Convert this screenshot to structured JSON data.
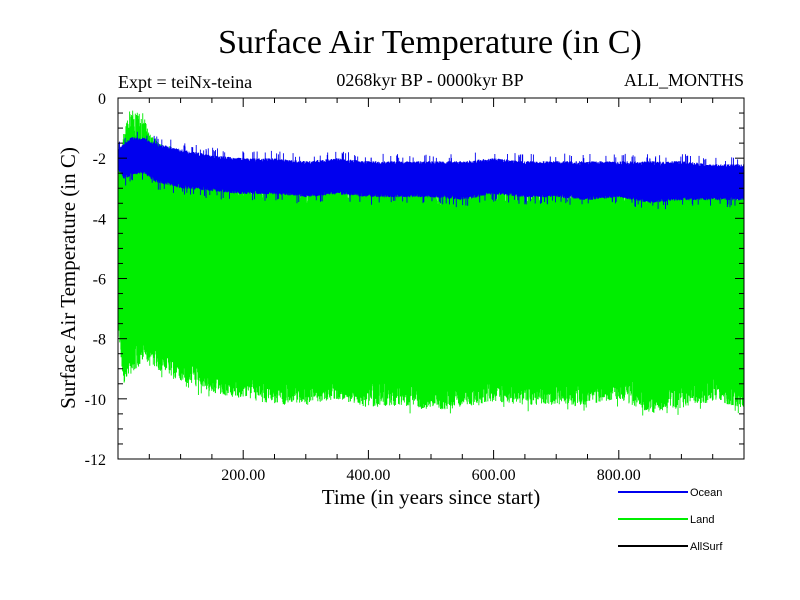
{
  "chart_data": {
    "type": "line",
    "title": "Surface Air Temperature (in C)",
    "subtitle": "0268kyr BP - 0000kyr BP",
    "annotation_left": "Expt = teiNx-teina",
    "annotation_right": "ALL_MONTHS",
    "xlabel": "Time (in years since start)",
    "ylabel": "Surface Air Temperature (in C)",
    "xlim": [
      0,
      1000
    ],
    "ylim": [
      -12,
      0
    ],
    "x_ticks": [
      200,
      400,
      600,
      800
    ],
    "x_tick_labels": [
      "200.00",
      "400.00",
      "600.00",
      "800.00"
    ],
    "y_ticks": [
      0,
      -2,
      -4,
      -6,
      -8,
      -10,
      -12
    ],
    "y_tick_labels": [
      "0",
      "-2",
      "-4",
      "-6",
      "-8",
      "-10",
      "-12"
    ],
    "legend_position": "bottom-right",
    "series": [
      {
        "name": "Land",
        "color": "#00ee00",
        "x": [
          0,
          10,
          20,
          40,
          60,
          100,
          150,
          200,
          250,
          300,
          350,
          400,
          450,
          500,
          550,
          600,
          650,
          700,
          750,
          800,
          850,
          900,
          950,
          1000
        ],
        "upper": [
          -2.2,
          -1.0,
          -0.3,
          -0.6,
          -1.4,
          -2.0,
          -2.3,
          -2.6,
          -2.6,
          -2.7,
          -2.6,
          -2.6,
          -2.8,
          -2.7,
          -2.8,
          -2.6,
          -2.9,
          -2.8,
          -2.8,
          -2.7,
          -2.8,
          -2.8,
          -2.8,
          -2.9
        ],
        "lower": [
          -8.0,
          -9.5,
          -9.2,
          -8.8,
          -9.0,
          -9.4,
          -9.8,
          -10.0,
          -10.2,
          -10.2,
          -10.0,
          -10.3,
          -10.2,
          -10.4,
          -10.3,
          -10.1,
          -10.2,
          -10.2,
          -10.2,
          -10.0,
          -10.5,
          -10.3,
          -10.1,
          -10.3
        ]
      },
      {
        "name": "Ocean",
        "color": "#0000ee",
        "x": [
          0,
          10,
          20,
          40,
          60,
          100,
          150,
          200,
          250,
          300,
          350,
          400,
          450,
          500,
          550,
          600,
          650,
          700,
          750,
          800,
          850,
          900,
          950,
          1000
        ],
        "upper": [
          -1.7,
          -1.5,
          -1.3,
          -1.3,
          -1.5,
          -1.7,
          -1.9,
          -2.0,
          -2.0,
          -2.1,
          -2.0,
          -2.1,
          -2.1,
          -2.1,
          -2.1,
          -2.0,
          -2.1,
          -2.1,
          -2.1,
          -2.1,
          -2.1,
          -2.1,
          -2.2,
          -2.2
        ],
        "lower": [
          -2.4,
          -2.7,
          -2.6,
          -2.5,
          -2.8,
          -3.0,
          -3.1,
          -3.2,
          -3.2,
          -3.3,
          -3.2,
          -3.3,
          -3.3,
          -3.3,
          -3.4,
          -3.2,
          -3.3,
          -3.3,
          -3.4,
          -3.3,
          -3.5,
          -3.4,
          -3.4,
          -3.4
        ]
      },
      {
        "name": "AllSurf",
        "color": "#000000",
        "x": [],
        "upper": [],
        "lower": []
      }
    ]
  }
}
